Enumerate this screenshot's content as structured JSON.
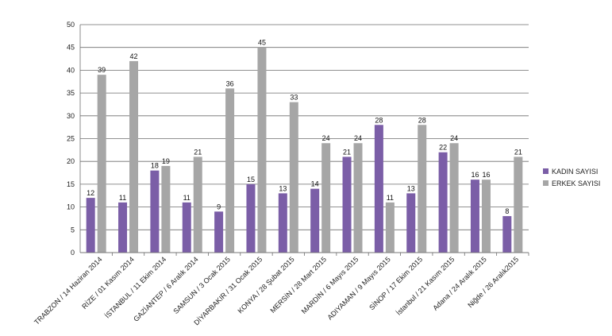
{
  "chart_data": {
    "type": "bar",
    "categories": [
      "TRABZON / 14 Haziran 2014",
      "RİZE / 01 Kasım 2014",
      "İSTANBUL / 11 Ekim 2014",
      "GAZİANTEP / 6 Aralık 2014",
      "SAMSUN / 3 Ocak 2015",
      "DİYARBAKIR / 31 Ocak 2015",
      "KONYA / 28 Şubat 2015",
      "MERSİN / 28 Mart 2015",
      "MARDİN / 6 Mayıs 2015",
      "ADIYAMAN / 9 Mayıs 2015",
      "SİNOP / 17 Ekim 2015",
      "İstanbul / 21 Kasım 2015",
      "Adana / 24 Aralık 2015",
      "Niğde / 26 Aralık2015"
    ],
    "series": [
      {
        "name": "KADIN SAYISI",
        "color": "#7b5ea7",
        "values": [
          12,
          11,
          18,
          11,
          9,
          15,
          13,
          14,
          21,
          28,
          13,
          22,
          16,
          8
        ]
      },
      {
        "name": "ERKEK SAYISI",
        "color": "#a6a6a6",
        "values": [
          39,
          42,
          19,
          21,
          36,
          45,
          33,
          24,
          24,
          11,
          28,
          24,
          16,
          21
        ]
      }
    ],
    "title": "",
    "xlabel": "",
    "ylabel": "",
    "ylim": [
      0,
      50
    ],
    "yticks": [
      0,
      5,
      10,
      15,
      20,
      25,
      30,
      35,
      40,
      45,
      50
    ],
    "grid": true,
    "legend_position": "right",
    "data_labels": true
  }
}
